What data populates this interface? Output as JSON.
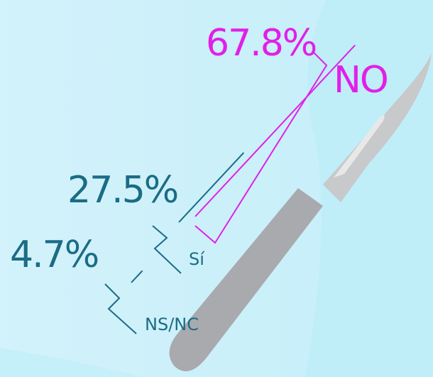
{
  "chart_data": {
    "type": "bar",
    "categories": [
      "NO",
      "Sí",
      "NS/NC"
    ],
    "values": [
      67.8,
      27.5,
      4.7
    ],
    "value_labels": [
      "67.8%",
      "27.5%",
      "4.7%"
    ],
    "colors": [
      "#e020e8",
      "#1b6c85",
      "#1b6c85"
    ]
  }
}
